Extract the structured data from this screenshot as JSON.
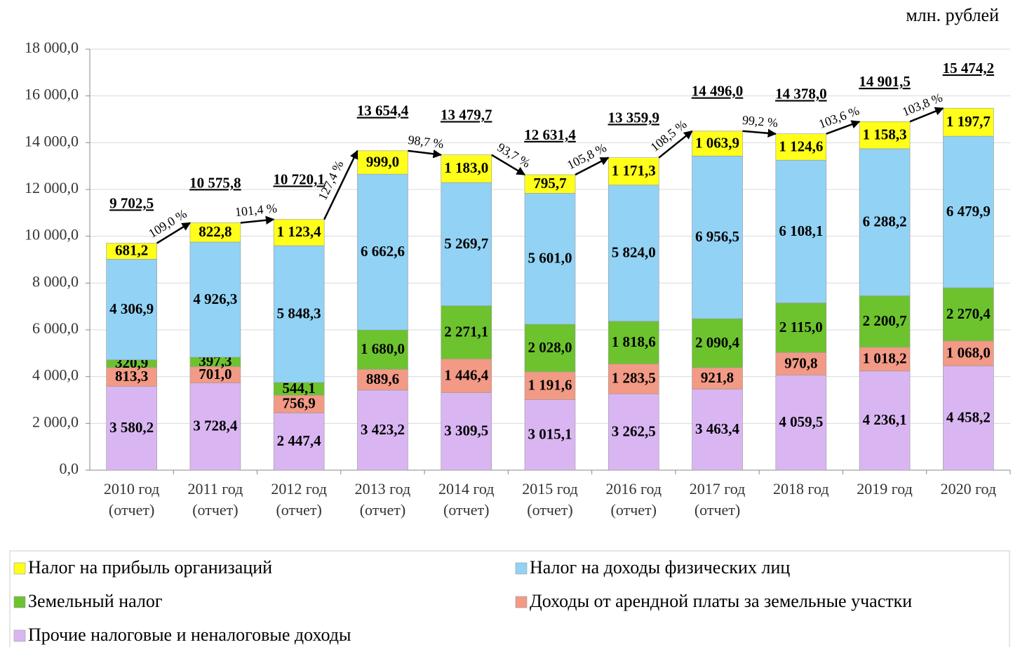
{
  "chart_data": {
    "type": "stacked_bar",
    "unit": "млн. рублей",
    "categories": [
      "2010 год (отчет)",
      "2011 год (отчет)",
      "2012 год (отчет)",
      "2013 год (отчет)",
      "2014 год (отчет)",
      "2015 год (отчет)",
      "2016 год (отчет)",
      "2017 год (отчет)",
      "2018 год",
      "2019 год",
      "2020 год"
    ],
    "series": [
      {
        "name": "Прочие налоговые и неналоговые доходы",
        "color": "#d9b6f2",
        "values": [
          3580.2,
          3728.4,
          2447.4,
          3423.2,
          3309.5,
          3015.1,
          3262.5,
          3463.4,
          4059.5,
          4236.1,
          4458.2
        ],
        "value_labels": [
          "3 580,2",
          "3 728,4",
          "2 447,4",
          "3 423,2",
          "3 309,5",
          "3 015,1",
          "3 262,5",
          "3 463,4",
          "4 059,5",
          "4 236,1",
          "4 458,2"
        ]
      },
      {
        "name": "Доходы от арендной платы за земельные участки",
        "color": "#f29a85",
        "values": [
          813.3,
          701.0,
          756.9,
          889.6,
          1446.4,
          1191.6,
          1283.5,
          921.8,
          970.8,
          1018.2,
          1068.0
        ],
        "value_labels": [
          "813,3",
          "701,0",
          "756,9",
          "889,6",
          "1 446,4",
          "1 191,6",
          "1 283,5",
          "921,8",
          "970,8",
          "1 018,2",
          "1 068,0"
        ]
      },
      {
        "name": "Земельный налог",
        "color": "#6cc32e",
        "values": [
          320.9,
          397.3,
          544.1,
          1680.0,
          2271.1,
          2028.0,
          1818.6,
          2090.4,
          2115.0,
          2200.7,
          2270.4
        ],
        "value_labels": [
          "320,9",
          "397,3",
          "544,1",
          "1 680,0",
          "2 271,1",
          "2 028,0",
          "1 818,6",
          "2 090,4",
          "2 115,0",
          "2 200,7",
          "2 270,4"
        ]
      },
      {
        "name": "Налог на доходы физических лиц",
        "color": "#92d2f4",
        "values": [
          4306.9,
          4926.3,
          5848.3,
          6662.6,
          5269.7,
          5601.0,
          5824.0,
          6956.5,
          6108.1,
          6288.2,
          6479.9
        ],
        "value_labels": [
          "4 306,9",
          "4 926,3",
          "5 848,3",
          "6 662,6",
          "5 269,7",
          "5 601,0",
          "5 824,0",
          "6 956,5",
          "6 108,1",
          "6 288,2",
          "6 479,9"
        ]
      },
      {
        "name": "Налог на прибыль организаций",
        "color": "#ffff1a",
        "values": [
          681.2,
          822.8,
          1123.4,
          999.0,
          1183.0,
          795.7,
          1171.3,
          1063.9,
          1124.6,
          1158.3,
          1197.7
        ],
        "value_labels": [
          "681,2",
          "822,8",
          "1 123,4",
          "999,0",
          "1 183,0",
          "795,7",
          "1 171,3",
          "1 063,9",
          "1 124,6",
          "1 158,3",
          "1 197,7"
        ]
      }
    ],
    "totals": [
      9702.5,
      10575.8,
      10720.1,
      13654.4,
      13479.7,
      12631.4,
      13359.9,
      14496.0,
      14378.0,
      14901.5,
      15474.2
    ],
    "total_labels": [
      "9 702,5",
      "10 575,8",
      "10 720,1",
      "13 654,4",
      "13 479,7",
      "12 631,4",
      "13 359,9",
      "14 496,0",
      "14 378,0",
      "14 901,5",
      "15 474,2"
    ],
    "growth": [
      109.0,
      101.4,
      127.4,
      98.7,
      93.7,
      105.8,
      108.5,
      99.2,
      103.6,
      103.8
    ],
    "growth_labels": [
      "109,0 %",
      "101,4 %",
      "127,4 %",
      "98,7 %",
      "93,7 %",
      "105,8 %",
      "108,5 %",
      "99,2 %",
      "103,6 %",
      "103,8 %"
    ],
    "ylim": [
      0,
      18000
    ],
    "yticks": [
      {
        "value": 0,
        "label": "0,0"
      },
      {
        "value": 2000,
        "label": "2 000,0"
      },
      {
        "value": 4000,
        "label": "4 000,0"
      },
      {
        "value": 6000,
        "label": "6 000,0"
      },
      {
        "value": 8000,
        "label": "8 000,0"
      },
      {
        "value": 10000,
        "label": "10 000,0"
      },
      {
        "value": 12000,
        "label": "12 000,0"
      },
      {
        "value": 14000,
        "label": "14 000,0"
      },
      {
        "value": 16000,
        "label": "16 000,0"
      },
      {
        "value": 18000,
        "label": "18 000,0"
      }
    ],
    "grid": true
  }
}
